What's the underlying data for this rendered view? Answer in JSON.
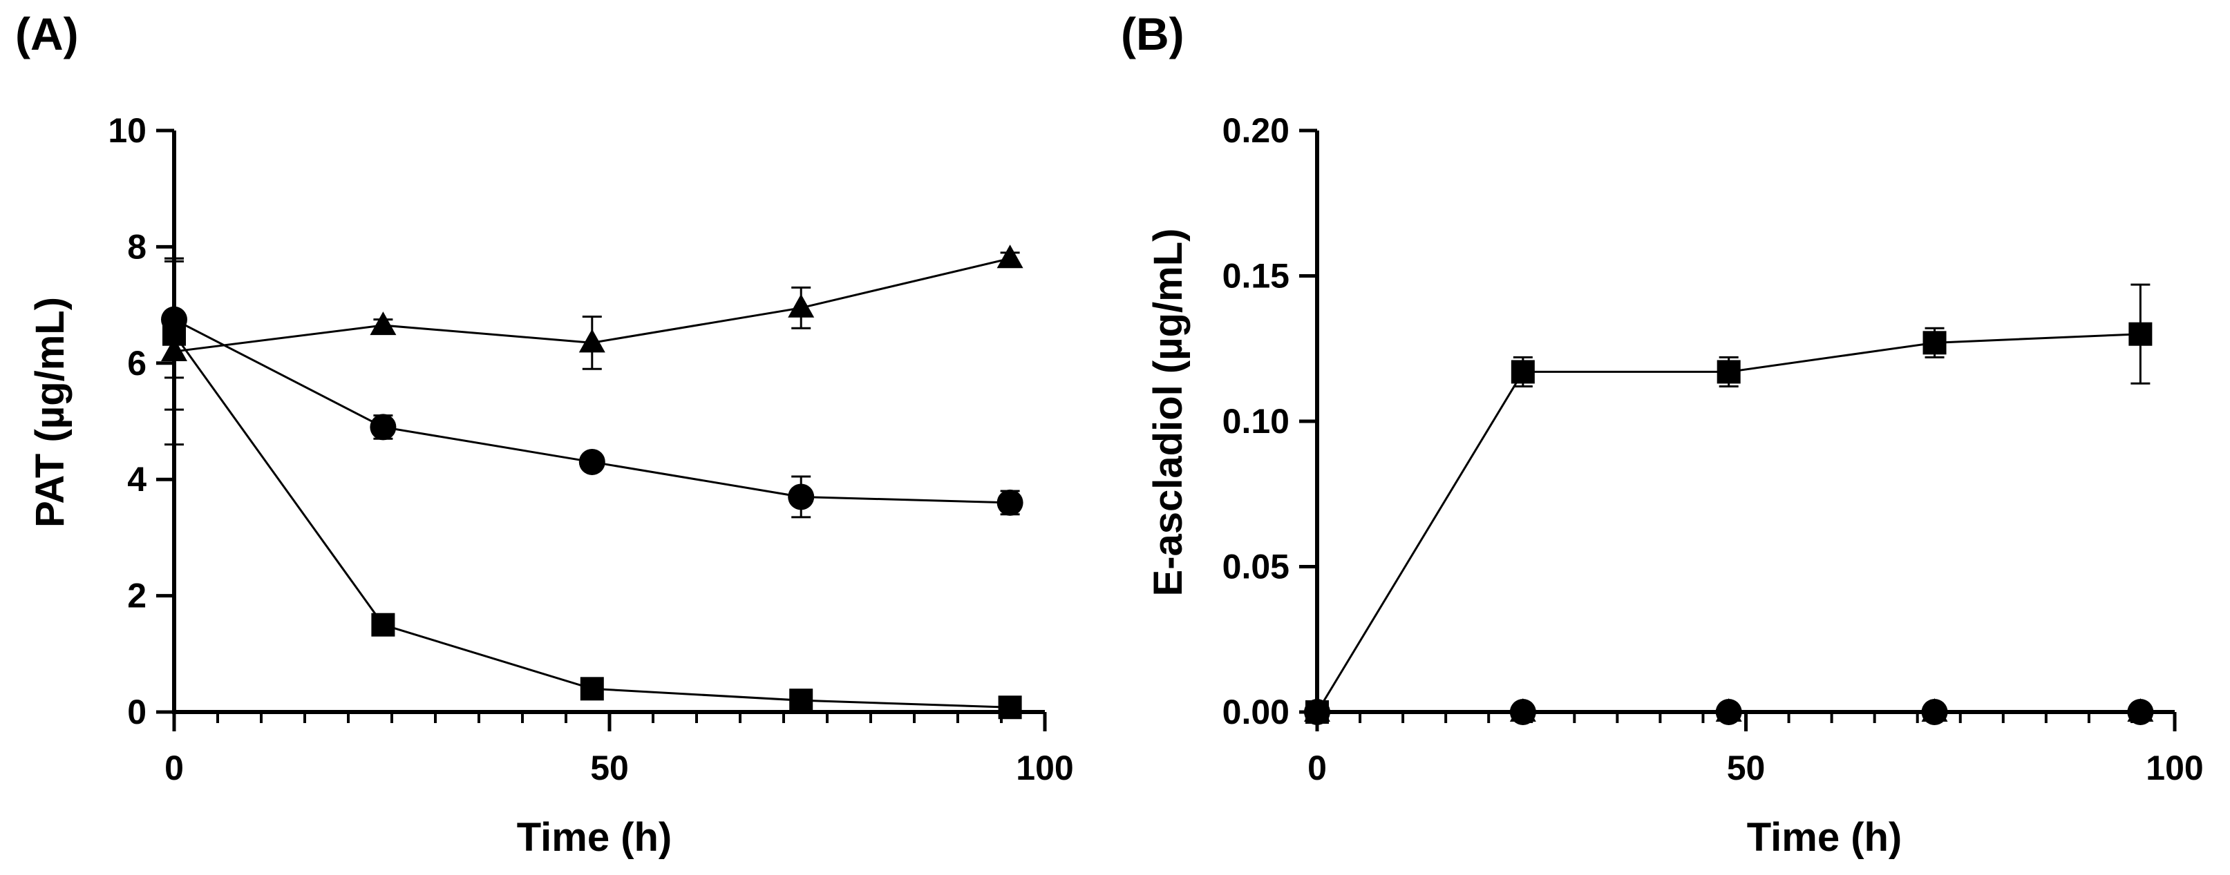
{
  "chart_data": [
    {
      "panel_label": "(A)",
      "type": "line",
      "title": "",
      "xlabel": "Time (h)",
      "ylabel": "PAT (µg/mL)",
      "xlim": [
        0,
        100
      ],
      "ylim": [
        0,
        10
      ],
      "xticks": [
        0,
        50,
        100
      ],
      "xtick_labels": [
        "0",
        "50",
        "100"
      ],
      "yticks": [
        0,
        2,
        4,
        6,
        8,
        10
      ],
      "ytick_labels": [
        "0",
        "2",
        "4",
        "6",
        "8",
        "10"
      ],
      "series": [
        {
          "name": "triangle",
          "marker": "triangle",
          "x": [
            0,
            24,
            48,
            72,
            96
          ],
          "y": [
            6.2,
            6.65,
            6.35,
            6.95,
            7.8
          ],
          "err": [
            1.6,
            0.1,
            0.45,
            0.35,
            0.1
          ]
        },
        {
          "name": "circle",
          "marker": "circle",
          "x": [
            0,
            24,
            48,
            72,
            96
          ],
          "y": [
            6.75,
            4.9,
            4.3,
            3.7,
            3.6
          ],
          "err": [
            1.0,
            0.2,
            0.1,
            0.35,
            0.2
          ]
        },
        {
          "name": "square",
          "marker": "square",
          "x": [
            0,
            24,
            48,
            72,
            96
          ],
          "y": [
            6.5,
            1.5,
            0.4,
            0.2,
            0.08
          ],
          "err": [
            1.3,
            0.1,
            0.1,
            0.1,
            0.05
          ]
        }
      ]
    },
    {
      "panel_label": "(B)",
      "type": "line",
      "title": "",
      "xlabel": "Time (h)",
      "ylabel": "E-ascladiol (µg/mL)",
      "xlim": [
        0,
        100
      ],
      "ylim": [
        0,
        0.2
      ],
      "xticks": [
        0,
        50,
        100
      ],
      "xtick_labels": [
        "0",
        "50",
        "100"
      ],
      "yticks": [
        0,
        0.05,
        0.1,
        0.15,
        0.2
      ],
      "ytick_labels": [
        "0.00",
        "0.05",
        "0.10",
        "0.15",
        "0.20"
      ],
      "series": [
        {
          "name": "triangle",
          "marker": "triangle",
          "x": [
            0,
            24,
            48,
            72,
            96
          ],
          "y": [
            0,
            0,
            0,
            0,
            0
          ],
          "err": [
            0,
            0,
            0,
            0,
            0
          ]
        },
        {
          "name": "circle",
          "marker": "circle",
          "x": [
            0,
            24,
            48,
            72,
            96
          ],
          "y": [
            0,
            0,
            0,
            0,
            0
          ],
          "err": [
            0,
            0,
            0,
            0,
            0
          ]
        },
        {
          "name": "square",
          "marker": "square",
          "x": [
            0,
            24,
            48,
            72,
            96
          ],
          "y": [
            0,
            0.117,
            0.117,
            0.127,
            0.13
          ],
          "err": [
            0,
            0.005,
            0.005,
            0.005,
            0.017
          ]
        }
      ]
    }
  ]
}
